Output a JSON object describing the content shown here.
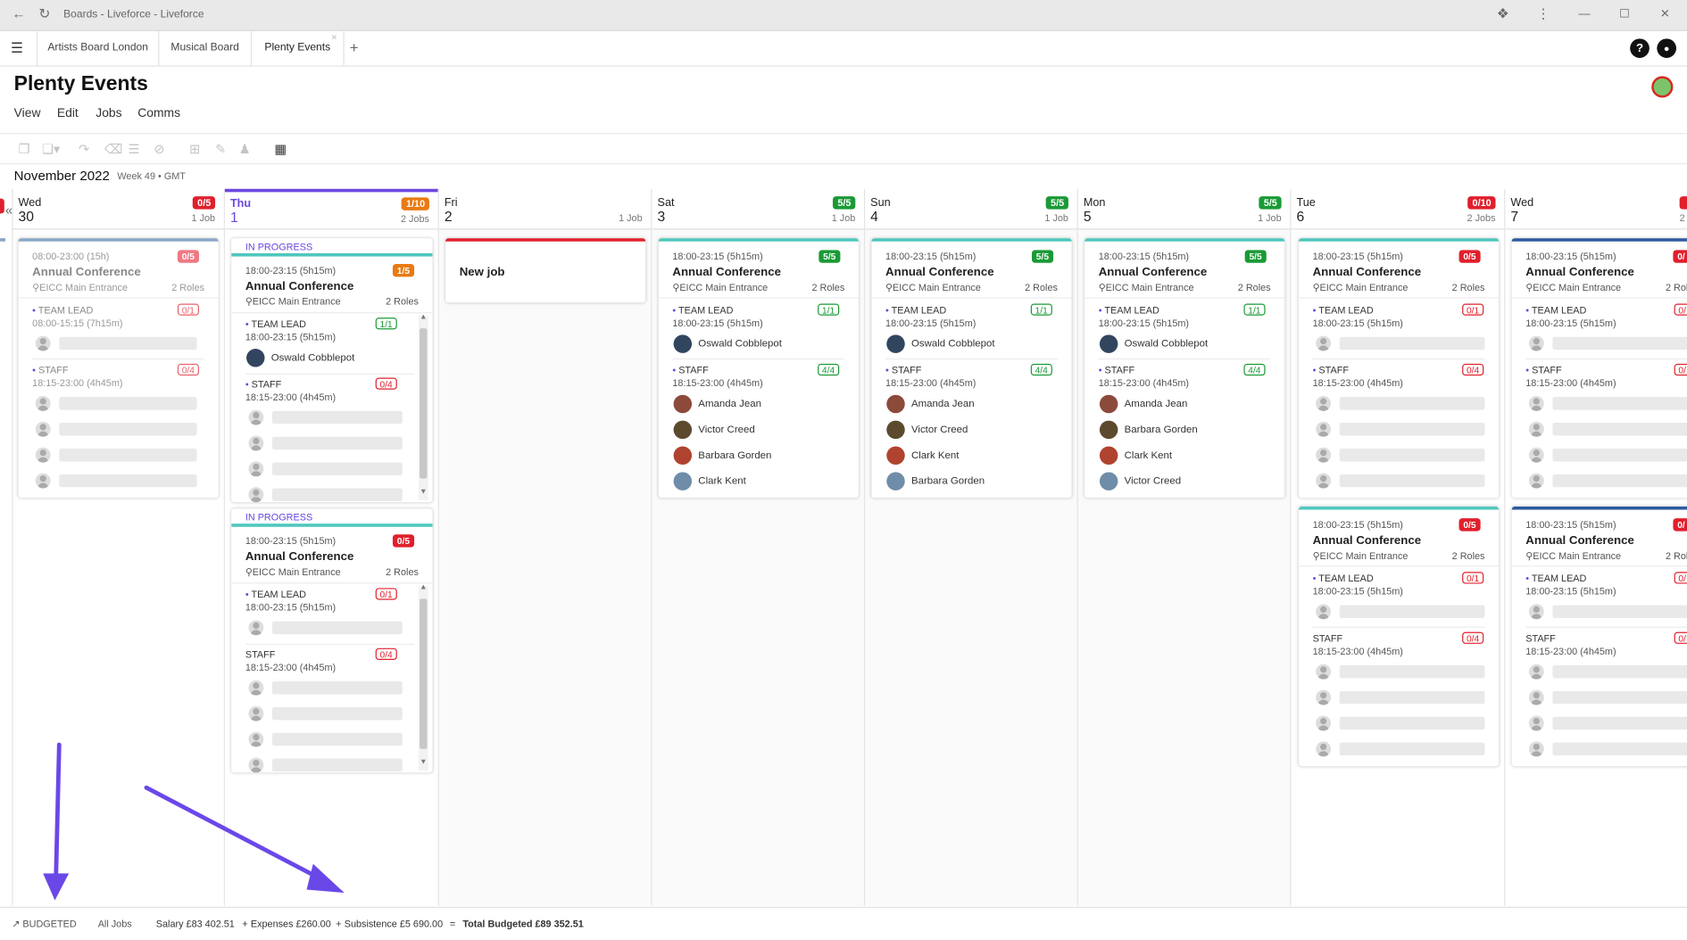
{
  "browser": {
    "title": "Boards - Liveforce - Liveforce",
    "back_icon": "arrow-left-icon",
    "reload_icon": "reload-icon",
    "extensions_icon": "puzzle-icon",
    "menu_icon": "kebab-icon",
    "minimize": "—",
    "maximize": "☐",
    "close": "✕"
  },
  "tabs": [
    "Artists Board London",
    "Musical Board",
    "Plenty Events"
  ],
  "tabs_add": "+",
  "tab_close": "×",
  "header": {
    "title": "Plenty Events",
    "menu": [
      "View",
      "Edit",
      "Jobs",
      "Comms"
    ],
    "help": "?",
    "bell": "🔔"
  },
  "period": {
    "month": "November 2022",
    "week": "Week 49 • GMT"
  },
  "days": [
    {
      "name": "Wed",
      "num": "30",
      "badge": "0/5",
      "badge_color": "red",
      "jobs": "1 Job"
    },
    {
      "name": "Thu",
      "num": "1",
      "badge": "1/10",
      "badge_color": "orange",
      "jobs": "2 Jobs"
    },
    {
      "name": "Fri",
      "num": "2",
      "badge": "",
      "badge_color": "",
      "jobs": "1 Job"
    },
    {
      "name": "Sat",
      "num": "3",
      "badge": "5/5",
      "badge_color": "green",
      "jobs": "1 Job"
    },
    {
      "name": "Sun",
      "num": "4",
      "badge": "5/5",
      "badge_color": "green",
      "jobs": "1 Job"
    },
    {
      "name": "Mon",
      "num": "5",
      "badge": "5/5",
      "badge_color": "green",
      "jobs": "1 Job"
    },
    {
      "name": "Tue",
      "num": "6",
      "badge": "0/10",
      "badge_color": "red",
      "jobs": "2 Jobs"
    },
    {
      "name": "Wed",
      "num": "7",
      "badge": "",
      "badge_color": "red",
      "jobs": "2"
    }
  ],
  "common": {
    "title": "Annual Conference",
    "location": "EICC Main Entrance",
    "roles": "2 Roles",
    "team_lead": "TEAM LEAD",
    "staff": "STAFF",
    "lead_time": "18:00-23:15 (5h15m)",
    "staff_time": "18:15-23:00 (4h45m)",
    "status": "IN PROGRESS",
    "new_job": "New job"
  },
  "wed30": {
    "time": "08:00-23:00 (15h)",
    "badge": "0/5",
    "lead_time": "08:00-15:15 (7h15m)",
    "lead_badge": "0/1",
    "staff_badge": "0/4"
  },
  "thu1": [
    {
      "badge": "1/5",
      "lead_badge": "1/1",
      "staff_badge": "0/4",
      "lead_person": "Oswald Cobblepot"
    },
    {
      "badge": "0/5",
      "lead_badge": "0/1",
      "staff_badge": "0/4"
    }
  ],
  "filled": [
    {
      "badge": "5/5",
      "lead_badge": "1/1",
      "staff_badge": "4/4",
      "lead_person": "Oswald Cobblepot",
      "staff": [
        "Amanda Jean",
        "Victor Creed",
        "Barbara Gorden",
        "Clark Kent"
      ]
    },
    {
      "badge": "5/5",
      "lead_badge": "1/1",
      "staff_badge": "4/4",
      "lead_person": "Oswald Cobblepot",
      "staff": [
        "Amanda Jean",
        "Victor Creed",
        "Clark Kent",
        "Barbara Gorden"
      ]
    },
    {
      "badge": "5/5",
      "lead_badge": "1/1",
      "staff_badge": "4/4",
      "lead_person": "Oswald Cobblepot",
      "staff": [
        "Amanda Jean",
        "Barbara Gorden",
        "Clark Kent",
        "Victor Creed"
      ]
    }
  ],
  "tue6": [
    {
      "badge": "0/5",
      "lead_badge": "0/1",
      "staff_badge": "0/4"
    },
    {
      "badge": "0/5",
      "lead_badge": "0/1",
      "staff_badge": "0/4"
    }
  ],
  "wed7": [
    {
      "badge": "0/",
      "lead_badge": "0/",
      "staff_badge": "0/",
      "roles": "2 Rol"
    },
    {
      "badge": "0/",
      "lead_badge": "0/",
      "staff_badge": "0/",
      "roles": "2 Rol"
    }
  ],
  "footer": {
    "budgeted": "BUDGETED",
    "all_jobs": "All Jobs",
    "salary": "Salary £83 402.51",
    "plus1": "+",
    "expenses": "Expenses £260.00",
    "plus2": "+",
    "subsistence": "Subsistence £5 690.00",
    "eq": "=",
    "total": "Total Budgeted £89 352.51"
  },
  "colors": {
    "accent": "#6b47e0",
    "red": "#e0202c",
    "green": "#1a9a36",
    "orange": "#ea7a12",
    "teal": "#4fc7bd",
    "navy": "#2d5a9e"
  }
}
